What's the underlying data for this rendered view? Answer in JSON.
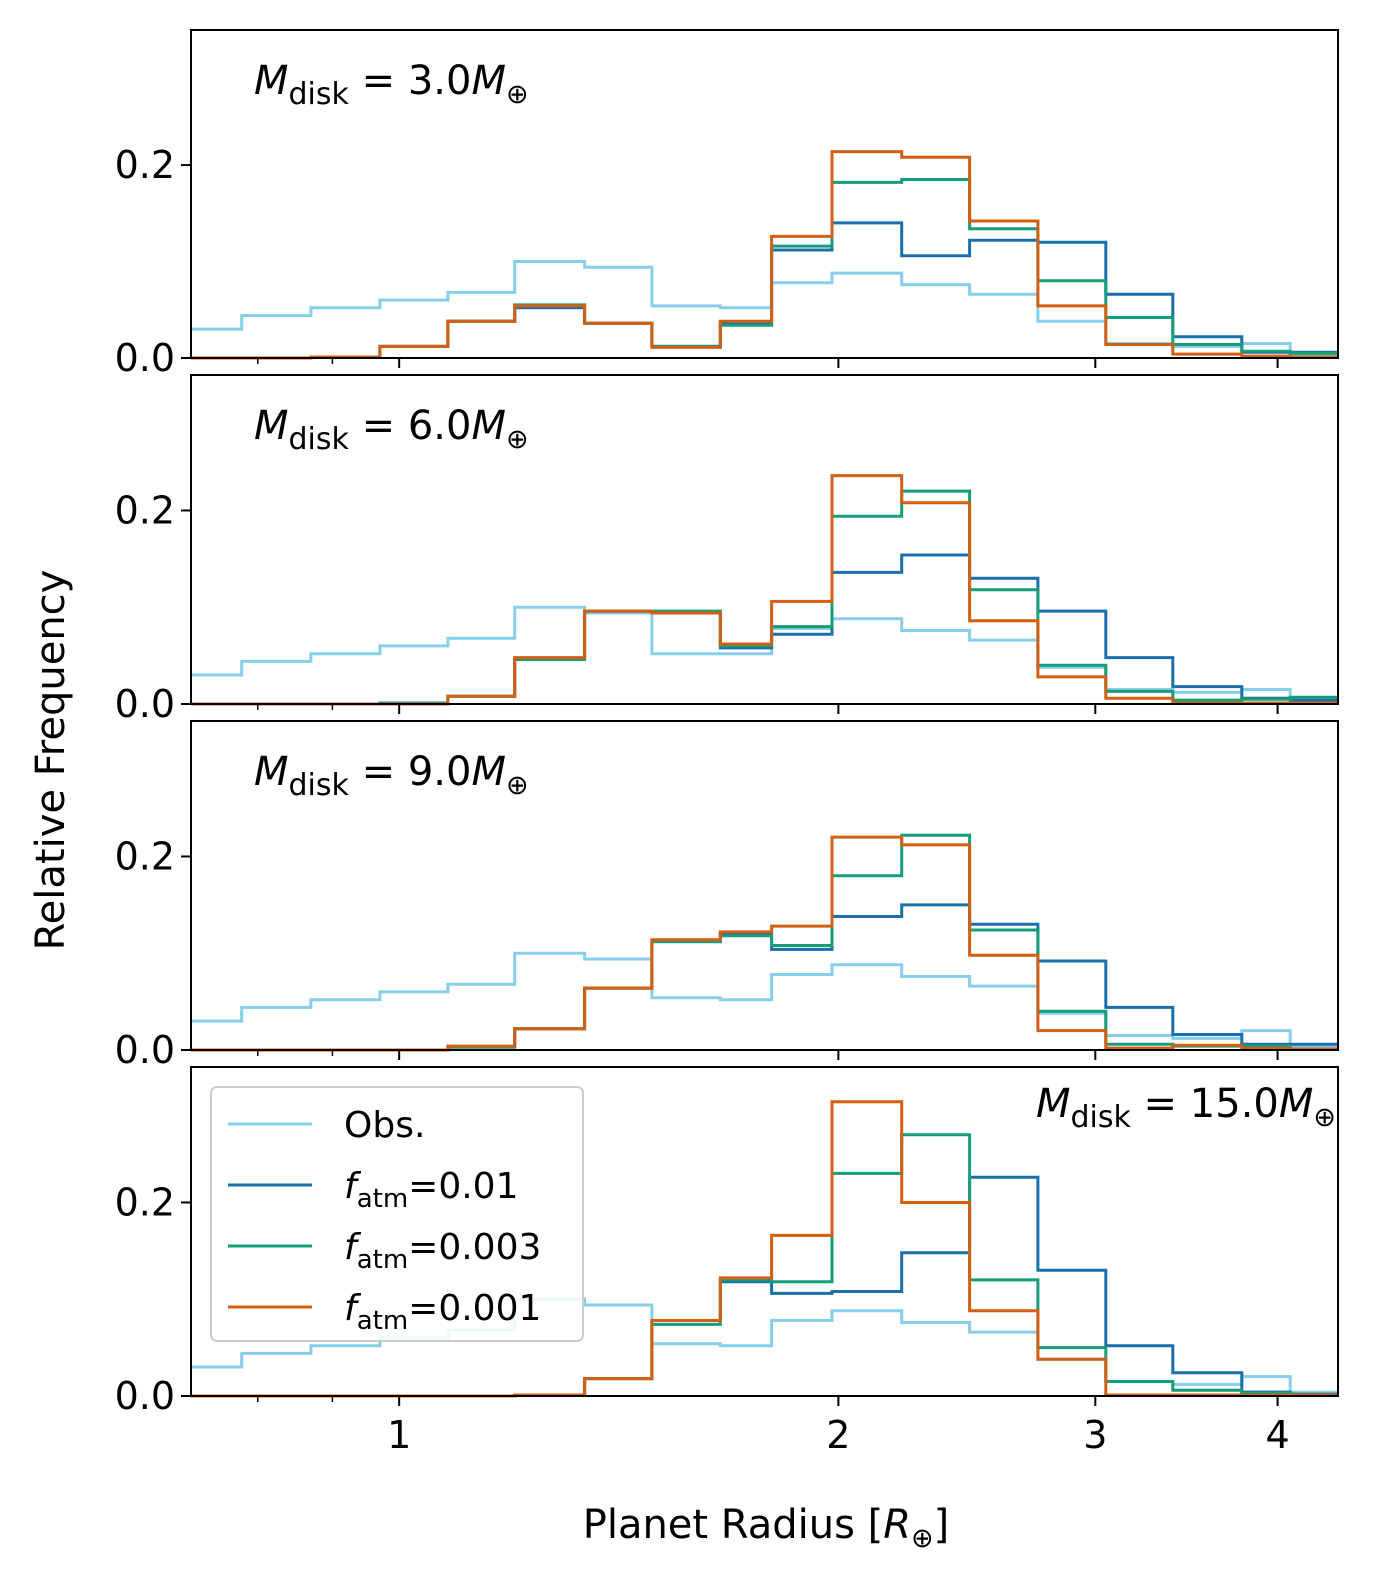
{
  "chart_data": {
    "type": "step-histogram",
    "xlabel": "Planet Radius [R⊕]",
    "ylabel": "Relative Frequency",
    "xscale": "log",
    "xlim": [
      0.72,
      4.4
    ],
    "ylim": [
      0,
      0.34
    ],
    "x_ticks": [
      1,
      2,
      3,
      4
    ],
    "x_tick_labels": [
      "1",
      "2",
      "3",
      "4"
    ],
    "y_ticks": [
      0.0,
      0.2
    ],
    "y_tick_labels": [
      "0.0",
      "0.2"
    ],
    "bin_edges": [
      0.72,
      0.78,
      0.87,
      0.97,
      1.08,
      1.2,
      1.34,
      1.49,
      1.66,
      1.8,
      1.98,
      2.21,
      2.46,
      2.74,
      3.05,
      3.39,
      3.78,
      4.08,
      4.4
    ],
    "legend": {
      "placement": "upper left of bottom panel",
      "entries": [
        {
          "key": "obs",
          "text": "Obs.",
          "color": "#87ceeb"
        },
        {
          "key": "f001",
          "prefix": "f",
          "sub": "atm",
          "suffix": "=0.01",
          "color": "#1a6fad"
        },
        {
          "key": "f0003",
          "prefix": "f",
          "sub": "atm",
          "suffix": "=0.003",
          "color": "#169e78"
        },
        {
          "key": "f0001",
          "prefix": "f",
          "sub": "atm",
          "suffix": "=0.001",
          "color": "#d35f12"
        }
      ]
    },
    "panels": [
      {
        "label": {
          "m": "M",
          "sub": "disk",
          "mid": " = 3.0",
          "m2": "M",
          "earth": "⊕"
        },
        "label_position": "top-left",
        "series": [
          {
            "name": "Obs.",
            "color": "#87ceeb",
            "values": [
              0.03,
              0.044,
              0.052,
              0.06,
              0.068,
              0.1,
              0.094,
              0.054,
              0.052,
              0.078,
              0.088,
              0.076,
              0.066,
              0.038,
              0.015,
              0.012,
              0.015,
              0.003
            ]
          },
          {
            "name": "f_atm=0.01",
            "color": "#1a6fad",
            "values": [
              0.0,
              0.0,
              0.001,
              0.012,
              0.038,
              0.052,
              0.036,
              0.012,
              0.036,
              0.112,
              0.14,
              0.106,
              0.122,
              0.12,
              0.066,
              0.022,
              0.006,
              0.006
            ]
          },
          {
            "name": "f_atm=0.003",
            "color": "#169e78",
            "values": [
              0.0,
              0.0,
              0.001,
              0.012,
              0.038,
              0.055,
              0.036,
              0.012,
              0.034,
              0.116,
              0.182,
              0.185,
              0.134,
              0.08,
              0.042,
              0.014,
              0.007,
              0.005
            ]
          },
          {
            "name": "f_atm=0.001",
            "color": "#d35f12",
            "values": [
              0.0,
              0.0,
              0.001,
              0.012,
              0.038,
              0.054,
              0.036,
              0.011,
              0.038,
              0.126,
              0.214,
              0.208,
              0.142,
              0.054,
              0.014,
              0.004,
              0.002,
              0.001
            ]
          }
        ]
      },
      {
        "label": {
          "m": "M",
          "sub": "disk",
          "mid": " = 6.0",
          "m2": "M",
          "earth": "⊕"
        },
        "label_position": "top-left",
        "series": [
          {
            "name": "Obs.",
            "color": "#87ceeb",
            "values": [
              0.03,
              0.044,
              0.052,
              0.06,
              0.068,
              0.1,
              0.094,
              0.052,
              0.052,
              0.078,
              0.088,
              0.076,
              0.066,
              0.038,
              0.015,
              0.012,
              0.015,
              0.003
            ]
          },
          {
            "name": "f_atm=0.01",
            "color": "#1a6fad",
            "values": [
              0.0,
              0.0,
              0.0,
              0.0,
              0.008,
              0.046,
              0.096,
              0.094,
              0.058,
              0.072,
              0.136,
              0.154,
              0.13,
              0.096,
              0.048,
              0.018,
              0.006,
              0.004
            ]
          },
          {
            "name": "f_atm=0.003",
            "color": "#169e78",
            "values": [
              0.0,
              0.0,
              0.0,
              0.001,
              0.008,
              0.046,
              0.096,
              0.096,
              0.06,
              0.08,
              0.194,
              0.22,
              0.118,
              0.04,
              0.013,
              0.004,
              0.005,
              0.007
            ]
          },
          {
            "name": "f_atm=0.001",
            "color": "#d35f12",
            "values": [
              0.0,
              0.0,
              0.0,
              0.0,
              0.008,
              0.048,
              0.096,
              0.094,
              0.062,
              0.106,
              0.236,
              0.208,
              0.086,
              0.028,
              0.006,
              0.001,
              0.001,
              0.001
            ]
          }
        ]
      },
      {
        "label": {
          "m": "M",
          "sub": "disk",
          "mid": " = 9.0",
          "m2": "M",
          "earth": "⊕"
        },
        "label_position": "top-left",
        "series": [
          {
            "name": "Obs.",
            "color": "#87ceeb",
            "values": [
              0.03,
              0.044,
              0.052,
              0.06,
              0.068,
              0.1,
              0.094,
              0.054,
              0.052,
              0.078,
              0.088,
              0.076,
              0.066,
              0.038,
              0.015,
              0.012,
              0.02,
              0.004
            ]
          },
          {
            "name": "f_atm=0.01",
            "color": "#1a6fad",
            "values": [
              0.0,
              0.0,
              0.0,
              0.0,
              0.003,
              0.022,
              0.064,
              0.112,
              0.12,
              0.104,
              0.138,
              0.15,
              0.13,
              0.092,
              0.044,
              0.016,
              0.006,
              0.006
            ]
          },
          {
            "name": "f_atm=0.003",
            "color": "#169e78",
            "values": [
              0.0,
              0.0,
              0.0,
              0.0,
              0.003,
              0.022,
              0.064,
              0.112,
              0.118,
              0.108,
              0.18,
              0.222,
              0.124,
              0.04,
              0.006,
              0.004,
              0.004,
              0.001
            ]
          },
          {
            "name": "f_atm=0.001",
            "color": "#d35f12",
            "values": [
              0.0,
              0.0,
              0.0,
              0.0,
              0.004,
              0.022,
              0.064,
              0.114,
              0.122,
              0.128,
              0.22,
              0.212,
              0.098,
              0.02,
              0.002,
              0.005,
              0.002,
              0.001
            ]
          }
        ]
      },
      {
        "label": {
          "m": "M",
          "sub": "disk",
          "mid": " = 15.0",
          "m2": "M",
          "earth": "⊕"
        },
        "label_position": "top-right",
        "series": [
          {
            "name": "Obs.",
            "color": "#87ceeb",
            "values": [
              0.03,
              0.044,
              0.052,
              0.06,
              0.068,
              0.1,
              0.094,
              0.054,
              0.052,
              0.078,
              0.088,
              0.076,
              0.066,
              0.038,
              0.015,
              0.012,
              0.02,
              0.004
            ]
          },
          {
            "name": "f_atm=0.01",
            "color": "#1a6fad",
            "values": [
              0.0,
              0.0,
              0.0,
              0.0,
              0.0,
              0.001,
              0.018,
              0.078,
              0.118,
              0.106,
              0.108,
              0.148,
              0.226,
              0.13,
              0.052,
              0.024,
              0.004,
              0.002
            ]
          },
          {
            "name": "f_atm=0.003",
            "color": "#169e78",
            "values": [
              0.0,
              0.0,
              0.0,
              0.0,
              0.0,
              0.001,
              0.018,
              0.074,
              0.12,
              0.118,
              0.23,
              0.27,
              0.12,
              0.05,
              0.015,
              0.006,
              0.003,
              0.001
            ]
          },
          {
            "name": "f_atm=0.001",
            "color": "#d35f12",
            "values": [
              0.0,
              0.0,
              0.0,
              0.0,
              0.0,
              0.001,
              0.018,
              0.078,
              0.122,
              0.166,
              0.304,
              0.2,
              0.088,
              0.038,
              0.001,
              0.001,
              0.001,
              0.001
            ]
          }
        ]
      }
    ]
  }
}
